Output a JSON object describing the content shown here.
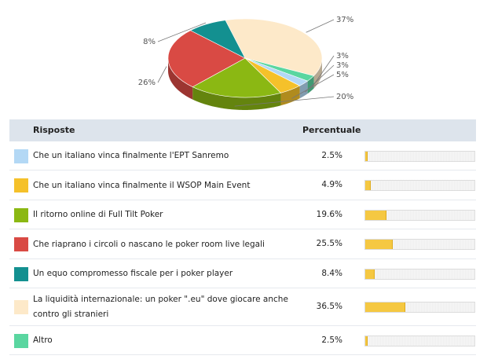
{
  "chart_data": {
    "type": "pie",
    "title": "",
    "slice_labels": [
      "37%",
      "3%",
      "3%",
      "5%",
      "20%",
      "26%",
      "8%"
    ],
    "slices": [
      {
        "label": "37%",
        "value": 36.5,
        "color": "#fde9c9"
      },
      {
        "label": "3%",
        "value": 2.5,
        "color": "#5ad6a0"
      },
      {
        "label": "3%",
        "value": 2.5,
        "color": "#b3d8f5"
      },
      {
        "label": "5%",
        "value": 4.9,
        "color": "#f5c12a"
      },
      {
        "label": "20%",
        "value": 19.6,
        "color": "#8bb813"
      },
      {
        "label": "26%",
        "value": 25.5,
        "color": "#d94a44"
      },
      {
        "label": "8%",
        "value": 8.4,
        "color": "#139090"
      }
    ]
  },
  "table": {
    "header_answers": "Risposte",
    "header_percent": "Percentuale",
    "rows": [
      {
        "answer": "Che un italiano vinca finalmente l'EPT Sanremo",
        "percent_text": "2.5%",
        "value": 2.5,
        "color": "#b3d8f5"
      },
      {
        "answer": "Che un italiano vinca finalmente il WSOP Main Event",
        "percent_text": "4.9%",
        "value": 4.9,
        "color": "#f5c12a"
      },
      {
        "answer": "Il ritorno online di Full Tilt Poker",
        "percent_text": "19.6%",
        "value": 19.6,
        "color": "#8bb813"
      },
      {
        "answer": "Che riaprano i circoli o nascano le poker room live legali",
        "percent_text": "25.5%",
        "value": 25.5,
        "color": "#d94a44"
      },
      {
        "answer": "Un equo compromesso fiscale per i poker player",
        "percent_text": "8.4%",
        "value": 8.4,
        "color": "#139090"
      },
      {
        "answer": "La liquidità internazionale: un poker \".eu\" dove giocare anche contro gli stranieri",
        "percent_text": "36.5%",
        "value": 36.5,
        "color": "#fde9c9"
      },
      {
        "answer": "Altro",
        "percent_text": "2.5%",
        "value": 2.5,
        "color": "#5ad6a0"
      }
    ]
  }
}
